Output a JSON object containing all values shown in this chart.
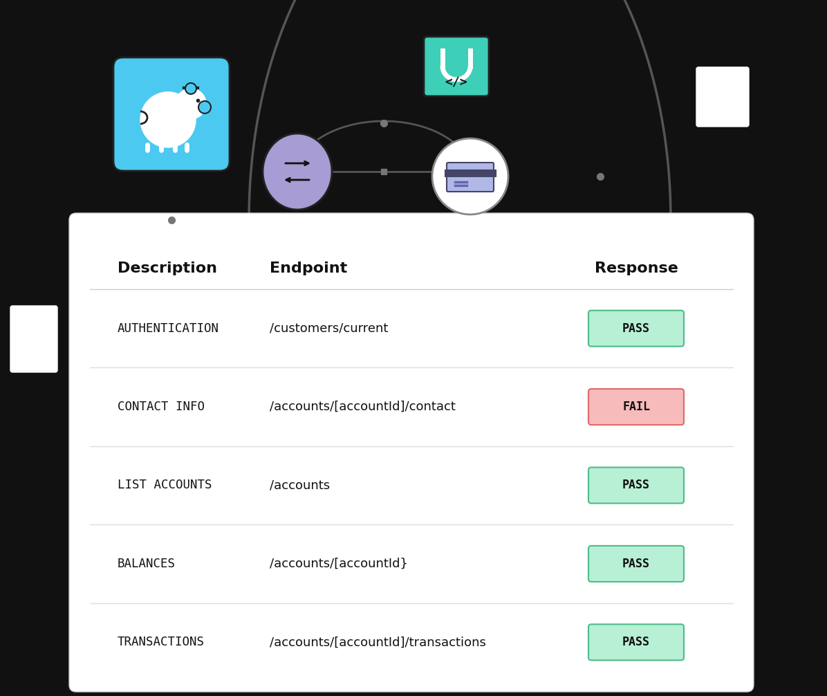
{
  "bg_color": "#111111",
  "table_bg": "#ffffff",
  "header_labels": [
    "Description",
    "Endpoint",
    "Response"
  ],
  "rows": [
    {
      "desc": "AUTHENTICATION",
      "endpoint": "/customers/current",
      "status": "PASS"
    },
    {
      "desc": "CONTACT INFO",
      "endpoint": "/accounts/[accountId]/contact",
      "status": "FAIL"
    },
    {
      "desc": "LIST ACCOUNTS",
      "endpoint": "/accounts",
      "status": "PASS"
    },
    {
      "desc": "BALANCES",
      "endpoint": "/accounts/[accountId}",
      "status": "PASS"
    },
    {
      "desc": "TRANSACTIONS",
      "endpoint": "/accounts/[accountId]/transactions",
      "status": "PASS"
    }
  ],
  "pass_bg": "#b8f0d5",
  "pass_border": "#4dbb88",
  "fail_bg": "#f7bbbb",
  "fail_border": "#e06868",
  "arc_color": "#555555",
  "piggy_color": "#4cc9f0",
  "transfer_color": "#a89cd4",
  "lock_color": "#3ecfb8",
  "credit_color": "#eeeeee"
}
